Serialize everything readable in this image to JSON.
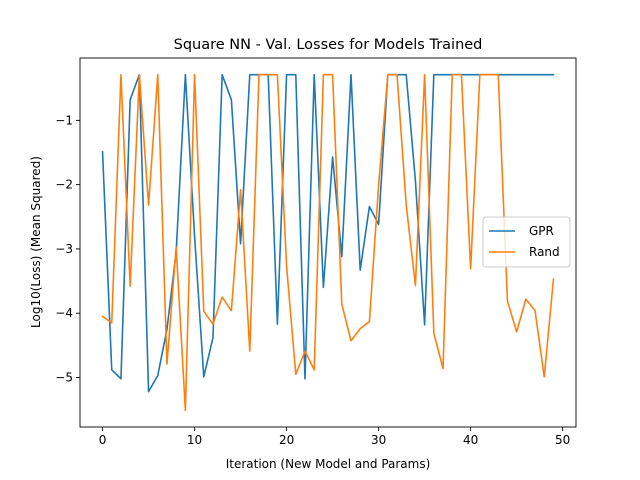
{
  "chart_data": {
    "type": "line",
    "title": "Square NN - Val. Losses for Models Trained",
    "xlabel": "Iteration (New Model and Params)",
    "ylabel": "Log10(Loss)  (Mean Squared)",
    "xlim": [
      -2.45,
      51.45
    ],
    "ylim": [
      -5.77,
      -0.03
    ],
    "xticks": [
      0,
      10,
      20,
      30,
      40,
      50
    ],
    "xtick_labels": [
      "0",
      "10",
      "20",
      "30",
      "40",
      "50"
    ],
    "yticks": [
      -5,
      -4,
      -3,
      -2,
      -1
    ],
    "ytick_labels": [
      "−5",
      "−4",
      "−3",
      "−2",
      "−1"
    ],
    "grid": false,
    "legend": "center-right",
    "series": [
      {
        "name": "GPR",
        "color": "#1f77b4",
        "x": [
          0,
          1,
          2,
          3,
          4,
          5,
          6,
          7,
          8,
          9,
          10,
          11,
          12,
          13,
          14,
          15,
          16,
          17,
          18,
          19,
          20,
          21,
          22,
          23,
          24,
          25,
          26,
          27,
          28,
          29,
          30,
          31,
          32,
          33,
          34,
          35,
          36,
          37,
          38,
          39,
          40,
          41,
          42,
          43,
          44,
          45,
          46,
          47,
          48,
          49
        ],
        "values": [
          -1.49,
          -4.88,
          -5.02,
          -0.68,
          -0.29,
          -5.22,
          -4.97,
          -4.25,
          -3.05,
          -0.29,
          -2.8,
          -4.99,
          -4.38,
          -0.29,
          -0.68,
          -2.92,
          -0.29,
          -0.29,
          -0.29,
          -4.17,
          -0.29,
          -0.29,
          -5.02,
          -0.29,
          -3.6,
          -1.57,
          -3.12,
          -0.29,
          -3.33,
          -2.34,
          -2.62,
          -0.29,
          -0.29,
          -0.29,
          -1.94,
          -4.18,
          -0.29,
          -0.29,
          -0.29,
          -0.29,
          -0.29,
          -0.29,
          -0.29,
          -0.29,
          -0.29,
          -0.29,
          -0.29,
          -0.29,
          -0.29,
          -0.29
        ]
      },
      {
        "name": "Rand",
        "color": "#ff7f0e",
        "x": [
          0,
          1,
          2,
          3,
          4,
          5,
          6,
          7,
          8,
          9,
          10,
          11,
          12,
          13,
          14,
          15,
          16,
          17,
          18,
          19,
          20,
          21,
          22,
          23,
          24,
          25,
          26,
          27,
          28,
          29,
          30,
          31,
          32,
          33,
          34,
          35,
          36,
          37,
          38,
          39,
          40,
          41,
          42,
          43,
          44,
          45,
          46,
          47,
          48,
          49
        ],
        "values": [
          -4.05,
          -4.15,
          -0.29,
          -3.58,
          -0.29,
          -2.32,
          -0.29,
          -4.79,
          -2.97,
          -5.51,
          -0.29,
          -3.97,
          -4.17,
          -3.75,
          -3.96,
          -2.08,
          -4.59,
          -0.29,
          -0.29,
          -0.29,
          -3.27,
          -4.95,
          -4.59,
          -4.88,
          -0.29,
          -0.29,
          -3.86,
          -4.43,
          -4.24,
          -4.13,
          -2.01,
          -0.29,
          -0.29,
          -2.32,
          -3.57,
          -0.29,
          -4.31,
          -4.86,
          -0.29,
          -0.29,
          -3.31,
          -0.29,
          -0.29,
          -0.29,
          -3.81,
          -4.29,
          -3.78,
          -3.96,
          -4.99,
          -3.47
        ]
      }
    ]
  }
}
